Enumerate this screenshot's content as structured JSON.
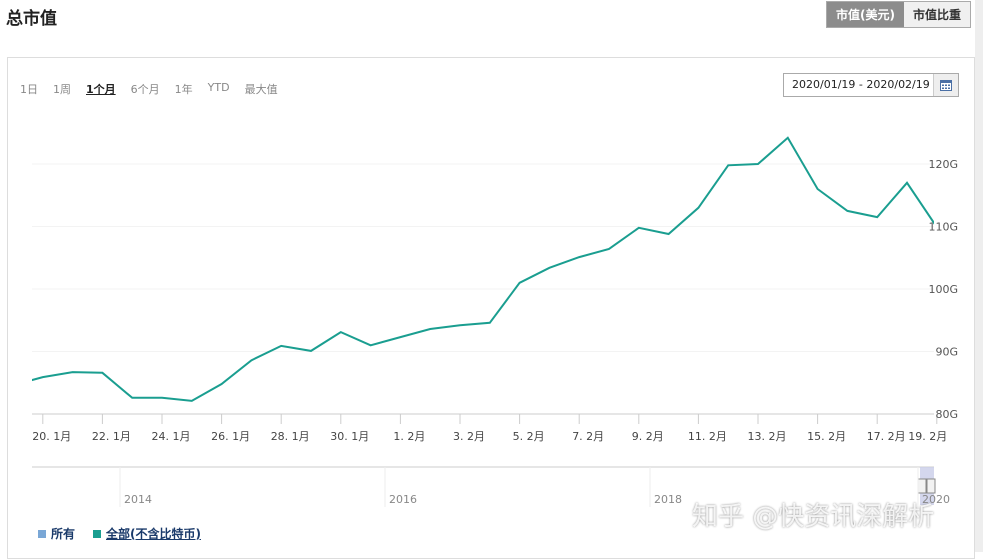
{
  "header": {
    "title": "总市值",
    "toggle": [
      "市值(美元)",
      "市值比重"
    ]
  },
  "ranges": [
    "1日",
    "1周",
    "1个月",
    "6个月",
    "1年",
    "YTD",
    "最大值"
  ],
  "selected_range": "1个月",
  "date_range": "2020/01/19 - 2020/02/19",
  "navigator": {
    "years": [
      "2014",
      "2016",
      "2018",
      "2020"
    ]
  },
  "legend": [
    {
      "label": "所有",
      "color": "#7aa7d6"
    },
    {
      "label": "全部(不含比特币)",
      "color": "#1a9e90"
    }
  ],
  "watermark": "知乎 @快资讯深解析",
  "chart_data": {
    "type": "line",
    "title": "",
    "x": [
      "19.1月",
      "20.1月",
      "21.1月",
      "22.1月",
      "23.1月",
      "24.1月",
      "25.1月",
      "26.1月",
      "27.1月",
      "28.1月",
      "29.1月",
      "30.1月",
      "31.1月",
      "1.2月",
      "2.2月",
      "3.2月",
      "4.2月",
      "5.2月",
      "6.2月",
      "7.2月",
      "8.2月",
      "9.2月",
      "10.2月",
      "11.2月",
      "12.2月",
      "13.2月",
      "14.2月",
      "15.2月",
      "16.2月",
      "17.2月",
      "18.2月",
      "19.2月"
    ],
    "x_tick_labels": [
      "20. 1月",
      "22. 1月",
      "24. 1月",
      "26. 1月",
      "28. 1月",
      "30. 1月",
      "1. 2月",
      "3. 2月",
      "5. 2月",
      "7. 2月",
      "9. 2月",
      "11. 2月",
      "13. 2月",
      "15. 2月",
      "17. 2月",
      "19. 2月"
    ],
    "series": [
      {
        "name": "全部(不含比特币)",
        "color": "#1a9e90",
        "values": [
          84.6,
          85.9,
          86.7,
          86.6,
          82.6,
          82.6,
          82.1,
          84.8,
          88.6,
          90.9,
          90.1,
          93.1,
          91.0,
          92.3,
          93.6,
          94.2,
          94.6,
          101.0,
          103.4,
          105.1,
          106.4,
          109.8,
          108.8,
          113.0,
          119.8,
          120.0,
          124.2,
          116.0,
          112.5,
          111.5,
          117.0,
          109.9
        ]
      }
    ],
    "y_ticks": [
      "80G",
      "90G",
      "100G",
      "110G",
      "120G"
    ],
    "ylim": [
      80,
      128
    ],
    "y_unit": "G",
    "grid": true,
    "legend_position": "bottom-left"
  }
}
